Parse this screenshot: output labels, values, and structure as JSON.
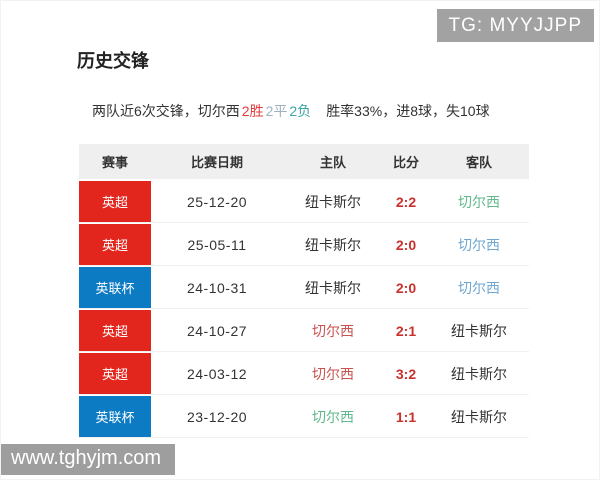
{
  "overlays": {
    "tg_badge": "TG: MYYJJPP",
    "watermark": "www.tghyjm.com"
  },
  "section": {
    "title": "历史交锋"
  },
  "summary": {
    "prefix": "两队近6次交锋，切尔西",
    "win": "2胜",
    "draw": "2平",
    "loss": "2负",
    "suffix": "胜率33%，进8球，失10球"
  },
  "palette": {
    "badge_red": "#e2261d",
    "badge_blue": "#0d7bc4",
    "dark": "#333333",
    "red": "#c9534f",
    "green": "#62b98d",
    "blue": "#6fa7d1",
    "score_red": "#c9302c",
    "win_red": "#e23c3c",
    "draw_gray": "#9fb0bd",
    "loss_teal": "#3aa7a3",
    "header_bg": "#efefef"
  },
  "table": {
    "headers": [
      "赛事",
      "比赛日期",
      "主队",
      "比分",
      "客队"
    ],
    "rows": [
      {
        "league": "英超",
        "league_color": "badge_red",
        "date": "25-12-20",
        "home": "纽卡斯尔",
        "home_color": "dark",
        "score": "2:2",
        "away": "切尔西",
        "away_color": "green"
      },
      {
        "league": "英超",
        "league_color": "badge_red",
        "date": "25-05-11",
        "home": "纽卡斯尔",
        "home_color": "dark",
        "score": "2:0",
        "away": "切尔西",
        "away_color": "blue"
      },
      {
        "league": "英联杯",
        "league_color": "badge_blue",
        "date": "24-10-31",
        "home": "纽卡斯尔",
        "home_color": "dark",
        "score": "2:0",
        "away": "切尔西",
        "away_color": "blue"
      },
      {
        "league": "英超",
        "league_color": "badge_red",
        "date": "24-10-27",
        "home": "切尔西",
        "home_color": "red",
        "score": "2:1",
        "away": "纽卡斯尔",
        "away_color": "dark"
      },
      {
        "league": "英超",
        "league_color": "badge_red",
        "date": "24-03-12",
        "home": "切尔西",
        "home_color": "red",
        "score": "3:2",
        "away": "纽卡斯尔",
        "away_color": "dark"
      },
      {
        "league": "英联杯",
        "league_color": "badge_blue",
        "date": "23-12-20",
        "home": "切尔西",
        "home_color": "green",
        "score": "1:1",
        "away": "纽卡斯尔",
        "away_color": "dark"
      }
    ]
  }
}
